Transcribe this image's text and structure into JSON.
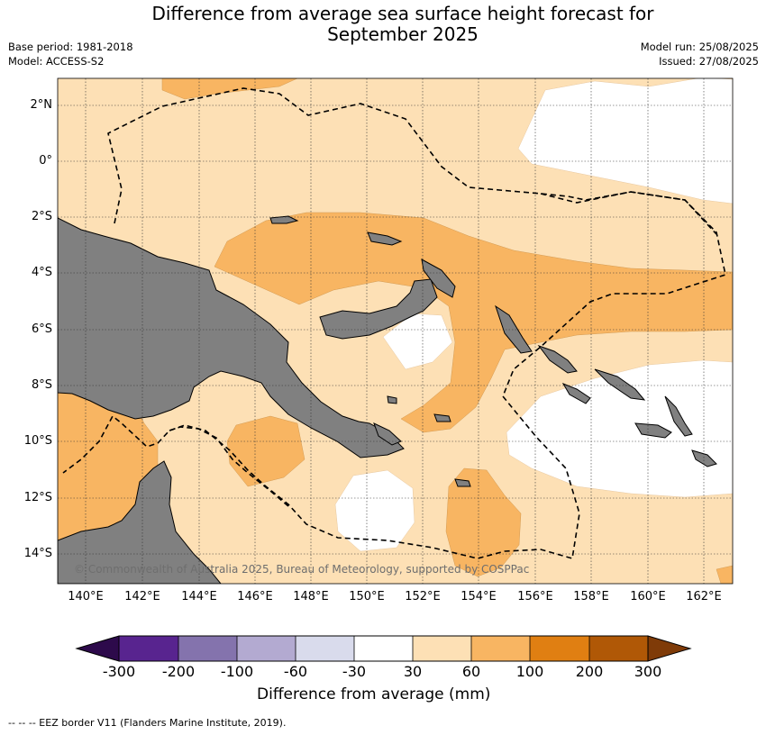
{
  "title": {
    "line1": "Difference from average sea surface height forecast for",
    "line2": "September 2025"
  },
  "meta": {
    "base_period": "Base period: 1981-2018",
    "model": "Model: ACCESS-S2",
    "model_run": "Model run: 25/08/2025",
    "issued": "Issued: 27/08/2025"
  },
  "map": {
    "copyright": "© Commonwealth of Australia 2025, Bureau of Meteorology, supported by COSPPac",
    "lat_labels": [
      "2°N",
      "0°",
      "2°S",
      "4°S",
      "6°S",
      "8°S",
      "10°S",
      "12°S",
      "14°S"
    ],
    "lon_labels": [
      "140°E",
      "142°E",
      "144°E",
      "146°E",
      "148°E",
      "150°E",
      "152°E",
      "154°E",
      "156°E",
      "158°E",
      "160°E",
      "162°E"
    ],
    "land_color": "#808080",
    "ocean_colors": {
      "30_to_60": "#fde0b5",
      "60_to_100": "#f8b562",
      "-30_to_30": "#ffffff"
    },
    "eez_border_style": "dashed"
  },
  "colorbar": {
    "bin_edges": [
      "-300",
      "-200",
      "-100",
      "-60",
      "-30",
      "30",
      "60",
      "100",
      "200",
      "300"
    ],
    "colors": [
      "#58248f",
      "#8473ad",
      "#b3aad1",
      "#d9dbec",
      "#ffffff",
      "#fde0b5",
      "#f8b562",
      "#e07f12",
      "#b05806"
    ],
    "under_color": "#2d0a4b",
    "over_color": "#7f3b08",
    "label": "Difference from average (mm)"
  },
  "footer": {
    "legend": "--  --  -- EEZ border V11 (Flanders Marine Institute, 2019)."
  }
}
